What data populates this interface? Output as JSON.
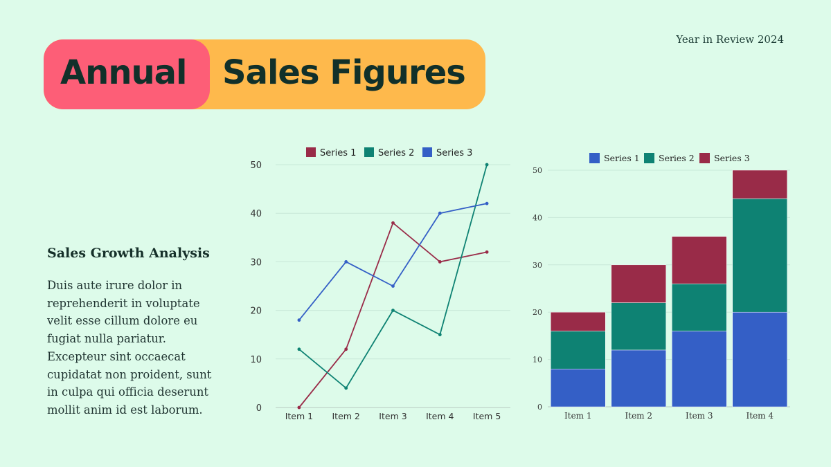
{
  "header": {
    "title_word1": "Annual",
    "title_word2": "Sales Figures",
    "year_label": "Year in Review 2024"
  },
  "text": {
    "subtitle": "Sales Growth Analysis",
    "body": "Duis aute irure dolor in reprehenderit in voluptate velit esse cillum dolore eu fugiat nulla pariatur. Excepteur sint occaecat cupidatat non proident, sunt in culpa qui officia deserunt mollit anim id est laborum."
  },
  "colors": {
    "background": "#ddfbea",
    "pink": "#fd5e77",
    "orange": "#feb94c",
    "dark": "#11302a",
    "maroon": "#992b48",
    "teal": "#0e8273",
    "blue": "#345fc6"
  },
  "chart_data": [
    {
      "type": "line",
      "categories": [
        "Item 1",
        "Item 2",
        "Item 3",
        "Item 4",
        "Item 5"
      ],
      "series": [
        {
          "name": "Series 1",
          "color": "#992b48",
          "values": [
            0,
            12,
            38,
            30,
            32
          ]
        },
        {
          "name": "Series 2",
          "color": "#0e8273",
          "values": [
            12,
            4,
            20,
            15,
            50
          ]
        },
        {
          "name": "Series 3",
          "color": "#345fc6",
          "values": [
            18,
            30,
            25,
            40,
            42
          ]
        }
      ],
      "ylim": [
        0,
        50
      ],
      "yticks": [
        0,
        10,
        20,
        30,
        40,
        50
      ],
      "grid": true,
      "legend": "top-center"
    },
    {
      "type": "bar",
      "stacked": true,
      "categories": [
        "Item 1",
        "Item 2",
        "Item 3",
        "Item 4"
      ],
      "series": [
        {
          "name": "Series 1",
          "color": "#345fc6",
          "values": [
            8,
            12,
            16,
            20
          ]
        },
        {
          "name": "Series 2",
          "color": "#0e8273",
          "values": [
            8,
            10,
            10,
            24
          ]
        },
        {
          "name": "Series 3",
          "color": "#992b48",
          "values": [
            4,
            8,
            10,
            6
          ]
        }
      ],
      "ylim": [
        0,
        50
      ],
      "yticks": [
        0,
        10,
        20,
        30,
        40,
        50
      ],
      "grid": true,
      "legend": "top-center"
    }
  ]
}
